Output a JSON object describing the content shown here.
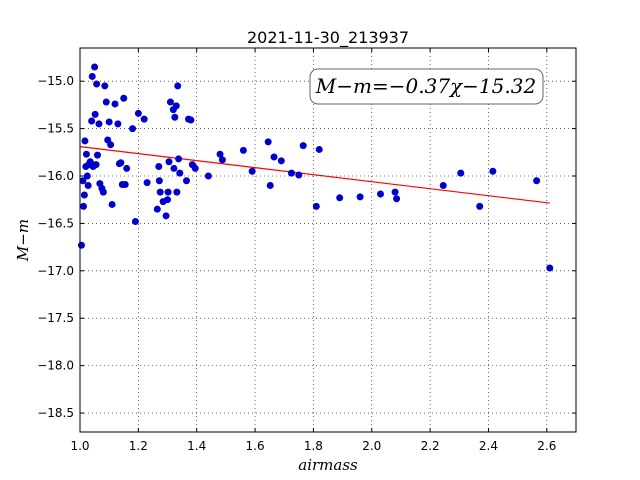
{
  "chart_data": {
    "type": "scatter",
    "title": "2021-11-30_213937",
    "xlabel": "airmass",
    "ylabel": "M−m",
    "xlim": [
      1.0,
      2.7
    ],
    "ylim": [
      -14.65,
      -18.7
    ],
    "y_inverted": true,
    "grid": true,
    "x_ticks": [
      "1.0",
      "1.2",
      "1.4",
      "1.6",
      "1.8",
      "2.0",
      "2.2",
      "2.4",
      "2.6"
    ],
    "y_ticks": [
      "−15.0",
      "−15.5",
      "−16.0",
      "−16.5",
      "−17.0",
      "−17.5",
      "−18.0",
      "−18.5"
    ],
    "annotation": "M−m=−0.37χ−15.32",
    "fit": {
      "slope": -0.37,
      "intercept": -15.32,
      "x_range": [
        1.0,
        2.61
      ],
      "color": "#ff0000"
    },
    "marker_color": "#0000cc",
    "points": [
      {
        "x": 1.005,
        "y": -16.73
      },
      {
        "x": 1.01,
        "y": -16.05
      },
      {
        "x": 1.012,
        "y": -16.32
      },
      {
        "x": 1.015,
        "y": -16.2
      },
      {
        "x": 1.017,
        "y": -15.63
      },
      {
        "x": 1.02,
        "y": -15.9
      },
      {
        "x": 1.022,
        "y": -15.77
      },
      {
        "x": 1.025,
        "y": -16.0
      },
      {
        "x": 1.028,
        "y": -16.1
      },
      {
        "x": 1.03,
        "y": -15.88
      },
      {
        "x": 1.035,
        "y": -15.85
      },
      {
        "x": 1.04,
        "y": -15.42
      },
      {
        "x": 1.042,
        "y": -14.95
      },
      {
        "x": 1.045,
        "y": -15.9
      },
      {
        "x": 1.05,
        "y": -14.85
      },
      {
        "x": 1.052,
        "y": -15.35
      },
      {
        "x": 1.055,
        "y": -15.88
      },
      {
        "x": 1.057,
        "y": -15.03
      },
      {
        "x": 1.06,
        "y": -15.78
      },
      {
        "x": 1.065,
        "y": -15.45
      },
      {
        "x": 1.068,
        "y": -16.08
      },
      {
        "x": 1.075,
        "y": -16.13
      },
      {
        "x": 1.08,
        "y": -16.17
      },
      {
        "x": 1.085,
        "y": -15.05
      },
      {
        "x": 1.09,
        "y": -15.22
      },
      {
        "x": 1.095,
        "y": -15.62
      },
      {
        "x": 1.1,
        "y": -15.43
      },
      {
        "x": 1.105,
        "y": -15.67
      },
      {
        "x": 1.11,
        "y": -16.3
      },
      {
        "x": 1.12,
        "y": -15.24
      },
      {
        "x": 1.13,
        "y": -15.45
      },
      {
        "x": 1.135,
        "y": -15.87
      },
      {
        "x": 1.14,
        "y": -15.86
      },
      {
        "x": 1.145,
        "y": -16.09
      },
      {
        "x": 1.15,
        "y": -15.18
      },
      {
        "x": 1.155,
        "y": -16.09
      },
      {
        "x": 1.16,
        "y": -15.92
      },
      {
        "x": 1.18,
        "y": -15.5
      },
      {
        "x": 1.19,
        "y": -16.48
      },
      {
        "x": 1.2,
        "y": -15.34
      },
      {
        "x": 1.22,
        "y": -15.4
      },
      {
        "x": 1.23,
        "y": -16.07
      },
      {
        "x": 1.265,
        "y": -16.35
      },
      {
        "x": 1.27,
        "y": -15.9
      },
      {
        "x": 1.272,
        "y": -16.05
      },
      {
        "x": 1.275,
        "y": -16.17
      },
      {
        "x": 1.285,
        "y": -16.27
      },
      {
        "x": 1.295,
        "y": -16.42
      },
      {
        "x": 1.3,
        "y": -16.25
      },
      {
        "x": 1.302,
        "y": -16.17
      },
      {
        "x": 1.305,
        "y": -15.85
      },
      {
        "x": 1.31,
        "y": -15.22
      },
      {
        "x": 1.32,
        "y": -15.3
      },
      {
        "x": 1.322,
        "y": -15.92
      },
      {
        "x": 1.325,
        "y": -15.38
      },
      {
        "x": 1.33,
        "y": -15.26
      },
      {
        "x": 1.332,
        "y": -16.17
      },
      {
        "x": 1.335,
        "y": -15.05
      },
      {
        "x": 1.338,
        "y": -15.82
      },
      {
        "x": 1.342,
        "y": -15.97
      },
      {
        "x": 1.365,
        "y": -16.05
      },
      {
        "x": 1.372,
        "y": -15.4
      },
      {
        "x": 1.38,
        "y": -15.41
      },
      {
        "x": 1.385,
        "y": -15.88
      },
      {
        "x": 1.395,
        "y": -15.92
      },
      {
        "x": 1.44,
        "y": -16.0
      },
      {
        "x": 1.48,
        "y": -15.77
      },
      {
        "x": 1.488,
        "y": -15.83
      },
      {
        "x": 1.56,
        "y": -15.73
      },
      {
        "x": 1.59,
        "y": -15.95
      },
      {
        "x": 1.645,
        "y": -15.64
      },
      {
        "x": 1.652,
        "y": -16.1
      },
      {
        "x": 1.665,
        "y": -15.8
      },
      {
        "x": 1.69,
        "y": -15.84
      },
      {
        "x": 1.725,
        "y": -15.97
      },
      {
        "x": 1.75,
        "y": -15.99
      },
      {
        "x": 1.765,
        "y": -15.68
      },
      {
        "x": 1.81,
        "y": -16.32
      },
      {
        "x": 1.82,
        "y": -15.72
      },
      {
        "x": 1.89,
        "y": -16.23
      },
      {
        "x": 1.96,
        "y": -16.22
      },
      {
        "x": 2.03,
        "y": -16.19
      },
      {
        "x": 2.08,
        "y": -16.17
      },
      {
        "x": 2.085,
        "y": -16.24
      },
      {
        "x": 2.245,
        "y": -16.1
      },
      {
        "x": 2.305,
        "y": -15.97
      },
      {
        "x": 2.37,
        "y": -16.32
      },
      {
        "x": 2.415,
        "y": -15.95
      },
      {
        "x": 2.565,
        "y": -16.05
      },
      {
        "x": 2.61,
        "y": -16.97
      }
    ]
  }
}
